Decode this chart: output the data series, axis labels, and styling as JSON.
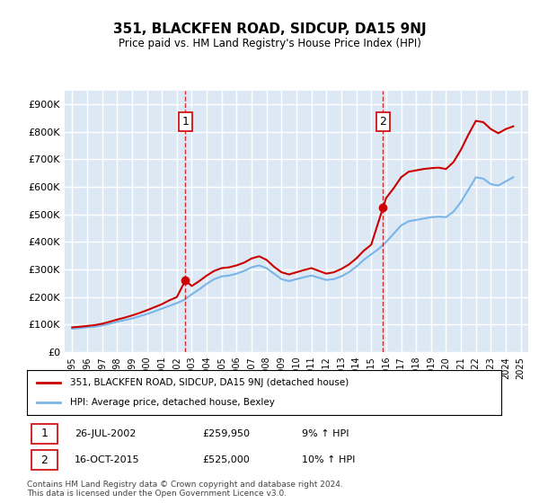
{
  "title": "351, BLACKFEN ROAD, SIDCUP, DA15 9NJ",
  "subtitle": "Price paid vs. HM Land Registry's House Price Index (HPI)",
  "ylabel_ticks": [
    "£0",
    "£100K",
    "£200K",
    "£300K",
    "£400K",
    "£500K",
    "£600K",
    "£700K",
    "£800K",
    "£900K"
  ],
  "yticks": [
    0,
    100000,
    200000,
    300000,
    400000,
    500000,
    600000,
    700000,
    800000,
    900000
  ],
  "ylim": [
    0,
    950000
  ],
  "xlim_start": 1994.5,
  "xlim_end": 2025.5,
  "bg_color": "#dce9f5",
  "plot_bg": "#dce9f5",
  "grid_color": "#ffffff",
  "hpi_color": "#7ab4e8",
  "property_color": "#cc0000",
  "transaction1": {
    "year": 2002.57,
    "price": 259950,
    "label": "1",
    "date": "26-JUL-2002",
    "pct": "9%"
  },
  "transaction2": {
    "year": 2015.79,
    "price": 525000,
    "label": "2",
    "date": "16-OCT-2015",
    "pct": "10%"
  },
  "hpi_years": [
    1995,
    1995.5,
    1996,
    1996.5,
    1997,
    1997.5,
    1998,
    1998.5,
    1999,
    1999.5,
    2000,
    2000.5,
    2001,
    2001.5,
    2002,
    2002.5,
    2003,
    2003.5,
    2004,
    2004.5,
    2005,
    2005.5,
    2006,
    2006.5,
    2007,
    2007.5,
    2008,
    2008.5,
    2009,
    2009.5,
    2010,
    2010.5,
    2011,
    2011.5,
    2012,
    2012.5,
    2013,
    2013.5,
    2014,
    2014.5,
    2015,
    2015.5,
    2016,
    2016.5,
    2017,
    2017.5,
    2018,
    2018.5,
    2019,
    2019.5,
    2020,
    2020.5,
    2021,
    2021.5,
    2022,
    2022.5,
    2023,
    2023.5,
    2024,
    2024.5
  ],
  "hpi_values": [
    85000,
    87000,
    90000,
    92000,
    97000,
    103000,
    110000,
    116000,
    122000,
    130000,
    138000,
    148000,
    158000,
    168000,
    178000,
    190000,
    210000,
    228000,
    248000,
    265000,
    275000,
    278000,
    285000,
    295000,
    308000,
    315000,
    305000,
    285000,
    265000,
    258000,
    265000,
    272000,
    278000,
    270000,
    262000,
    265000,
    275000,
    290000,
    310000,
    335000,
    355000,
    375000,
    400000,
    430000,
    460000,
    475000,
    480000,
    485000,
    490000,
    492000,
    490000,
    510000,
    545000,
    590000,
    635000,
    630000,
    610000,
    605000,
    620000,
    635000
  ],
  "prop_years": [
    1995,
    1995.5,
    1996,
    1996.5,
    1997,
    1997.5,
    1998,
    1998.5,
    1999,
    1999.5,
    2000,
    2000.5,
    2001,
    2001.5,
    2002,
    2002.57,
    2003,
    2003.5,
    2004,
    2004.5,
    2005,
    2005.5,
    2006,
    2006.5,
    2007,
    2007.5,
    2008,
    2008.5,
    2009,
    2009.5,
    2010,
    2010.5,
    2011,
    2011.5,
    2012,
    2012.5,
    2013,
    2013.5,
    2014,
    2014.5,
    2015,
    2015.79,
    2016,
    2016.5,
    2017,
    2017.5,
    2018,
    2018.5,
    2019,
    2019.5,
    2020,
    2020.5,
    2021,
    2021.5,
    2022,
    2022.5,
    2023,
    2023.5,
    2024,
    2024.5
  ],
  "prop_values": [
    90000,
    92000,
    95000,
    98000,
    103000,
    110000,
    118000,
    125000,
    133000,
    142000,
    152000,
    163000,
    174000,
    188000,
    200000,
    259950,
    240000,
    258000,
    278000,
    295000,
    305000,
    308000,
    315000,
    325000,
    340000,
    348000,
    335000,
    310000,
    290000,
    282000,
    290000,
    298000,
    305000,
    295000,
    285000,
    290000,
    302000,
    318000,
    340000,
    368000,
    390000,
    525000,
    560000,
    595000,
    635000,
    655000,
    660000,
    665000,
    668000,
    670000,
    665000,
    690000,
    735000,
    790000,
    840000,
    835000,
    810000,
    795000,
    810000,
    820000
  ],
  "legend_label_red": "351, BLACKFEN ROAD, SIDCUP, DA15 9NJ (detached house)",
  "legend_label_blue": "HPI: Average price, detached house, Bexley",
  "footer": "Contains HM Land Registry data © Crown copyright and database right 2024.\nThis data is licensed under the Open Government Licence v3.0.",
  "xticks": [
    1995,
    1996,
    1997,
    1998,
    1999,
    2000,
    2001,
    2002,
    2003,
    2004,
    2005,
    2006,
    2007,
    2008,
    2009,
    2010,
    2011,
    2012,
    2013,
    2014,
    2015,
    2016,
    2017,
    2018,
    2019,
    2020,
    2021,
    2022,
    2023,
    2024,
    2025
  ]
}
